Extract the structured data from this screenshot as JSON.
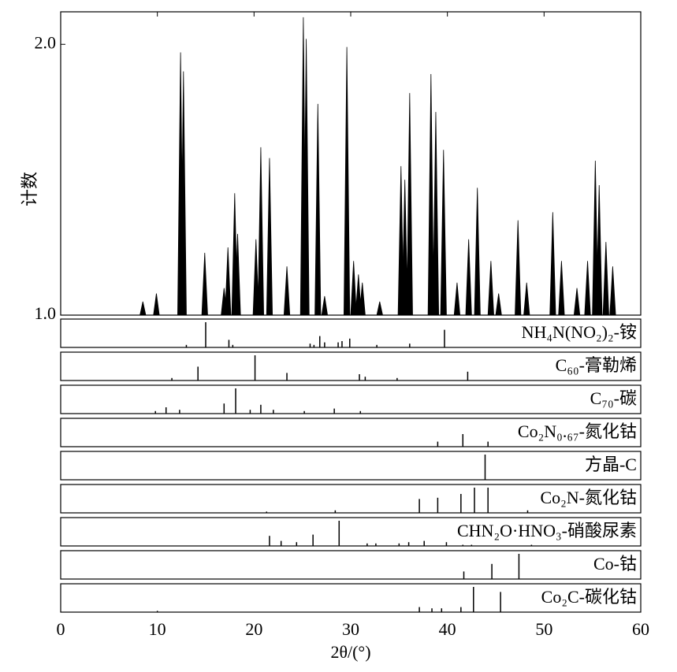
{
  "chart_data": {
    "type": "stem",
    "xlabel": "2θ/(°)",
    "ylabel": "计数",
    "xlim": [
      0,
      60
    ],
    "xticks": [
      0,
      10,
      20,
      30,
      40,
      50,
      60
    ],
    "ylim": [
      1,
      2.12
    ],
    "yticks": [
      {
        "value": 1,
        "label": "1.0"
      },
      {
        "value": 2,
        "label": "2.0"
      }
    ],
    "color": "#000000",
    "peaks": {
      "x": [
        8.5,
        9.9,
        12.4,
        12.7,
        14.9,
        16.9,
        17.3,
        18.0,
        18.3,
        20.2,
        20.7,
        21.6,
        23.4,
        25.1,
        25.4,
        26.6,
        27.3,
        29.6,
        30.3,
        30.8,
        31.2,
        33.0,
        35.2,
        35.6,
        36.1,
        38.3,
        38.8,
        39.6,
        41.0,
        42.2,
        43.1,
        44.5,
        45.3,
        47.3,
        48.2,
        50.9,
        51.8,
        53.4,
        54.5,
        55.3,
        55.7,
        56.4,
        57.1
      ],
      "values": [
        1.05,
        1.08,
        1.97,
        1.9,
        1.23,
        1.1,
        1.25,
        1.45,
        1.3,
        1.28,
        1.62,
        1.58,
        1.18,
        2.1,
        2.02,
        1.78,
        1.07,
        1.99,
        1.2,
        1.15,
        1.12,
        1.05,
        1.55,
        1.5,
        1.82,
        1.89,
        1.75,
        1.61,
        1.12,
        1.28,
        1.47,
        1.2,
        1.08,
        1.35,
        1.12,
        1.38,
        1.2,
        1.1,
        1.2,
        1.57,
        1.48,
        1.27,
        1.18
      ]
    },
    "reference_ylim": [
      0,
      100
    ],
    "references": [
      {
        "name": "NH₄N(NO₂)₂-铵",
        "x": [
          13.0,
          15.0,
          17.4,
          17.8,
          25.8,
          26.2,
          26.8,
          27.3,
          28.7,
          29.1,
          29.9,
          32.7,
          36.1,
          39.7
        ],
        "values": [
          10,
          100,
          30,
          10,
          15,
          10,
          45,
          20,
          20,
          25,
          35,
          10,
          15,
          70
        ]
      },
      {
        "name": "C₆₀-膏勒烯",
        "x": [
          11.5,
          14.2,
          20.1,
          23.4,
          30.9,
          31.5,
          34.8,
          42.1
        ],
        "values": [
          10,
          55,
          100,
          30,
          25,
          15,
          10,
          35
        ]
      },
      {
        "name": "C₇₀-碳",
        "x": [
          9.8,
          10.9,
          12.3,
          16.9,
          18.1,
          19.6,
          20.7,
          22.0,
          25.2,
          28.3,
          31.0
        ],
        "values": [
          10,
          25,
          15,
          40,
          100,
          15,
          35,
          15,
          10,
          20,
          10
        ]
      },
      {
        "name": "Co₂N₀.₆₇-氮化钴",
        "x": [
          39.0,
          41.6,
          44.2
        ],
        "values": [
          20,
          50,
          20
        ]
      },
      {
        "name": "方晶-C",
        "x": [
          43.9
        ],
        "values": [
          100
        ]
      },
      {
        "name": "Co₂N-氮化钴",
        "x": [
          21.3,
          28.4,
          37.1,
          39.0,
          41.4,
          42.8,
          44.2,
          48.3
        ],
        "values": [
          5,
          10,
          55,
          60,
          75,
          100,
          100,
          10
        ]
      },
      {
        "name": "CHN₂O·HNO₃-硝酸尿素",
        "x": [
          21.6,
          22.8,
          24.4,
          26.1,
          28.8,
          31.7,
          32.6,
          35.0,
          36.0,
          37.6,
          39.9,
          41.6,
          42.5,
          48.7
        ],
        "values": [
          40,
          20,
          15,
          45,
          100,
          10,
          10,
          10,
          15,
          20,
          15,
          20,
          10,
          10
        ]
      },
      {
        "name": "Co-钴",
        "x": [
          41.7,
          44.6,
          47.4
        ],
        "values": [
          30,
          60,
          100
        ]
      },
      {
        "name": "Co₂C-碳化钴",
        "x": [
          10.0,
          37.1,
          38.4,
          39.4,
          41.4,
          42.7,
          45.5
        ],
        "values": [
          5,
          20,
          15,
          15,
          20,
          100,
          80
        ]
      }
    ]
  }
}
